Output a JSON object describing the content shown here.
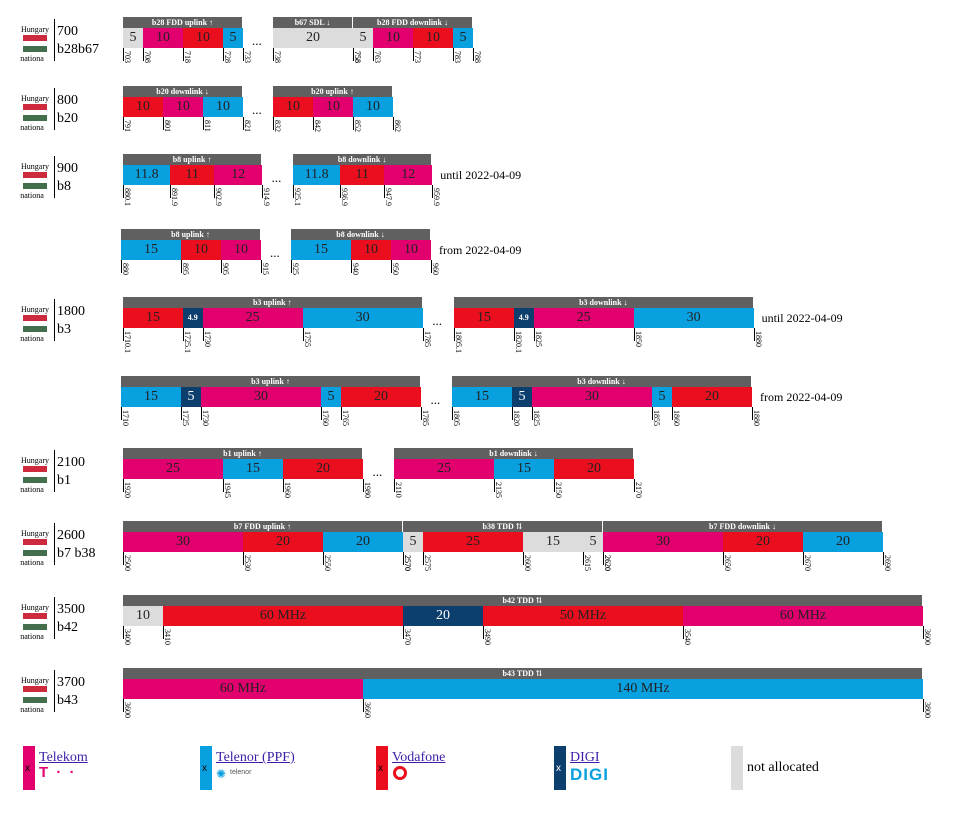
{
  "colors": {
    "telekom": "#e2006e",
    "telenor": "#09a0e0",
    "vodafone": "#ea0e1e",
    "digi": "#0c3e6e",
    "na": "#dcdcdc",
    "header": "#606060"
  },
  "country": {
    "top": "Hungary",
    "bottom": "nationa"
  },
  "rows": [
    {
      "band": "700",
      "codes": "b28b67",
      "note": "",
      "groups": [
        {
          "header": "b28 FDD uplink ↑",
          "segments": [
            {
              "op": "na",
              "label": "5",
              "mhz": 5
            },
            {
              "op": "telekom",
              "label": "10",
              "mhz": 10
            },
            {
              "op": "vodafone",
              "label": "10",
              "mhz": 10
            },
            {
              "op": "telenor",
              "label": "5",
              "mhz": 5
            }
          ],
          "ticks": [
            "703",
            "708",
            "718",
            "728",
            "733"
          ]
        },
        {
          "header": "b67 SDL ↓",
          "segments": [
            {
              "op": "na",
              "label": "20",
              "mhz": 20
            }
          ],
          "ticks": [
            "738",
            "758"
          ]
        },
        {
          "header": "b28 FDD downlink ↓",
          "segments": [
            {
              "op": "na",
              "label": "5",
              "mhz": 5
            },
            {
              "op": "telekom",
              "label": "10",
              "mhz": 10
            },
            {
              "op": "vodafone",
              "label": "10",
              "mhz": 10
            },
            {
              "op": "telenor",
              "label": "5",
              "mhz": 5
            }
          ],
          "ticks": [
            "758",
            "763",
            "773",
            "783",
            "788"
          ]
        }
      ]
    },
    {
      "band": "800",
      "codes": "b20",
      "note": "",
      "groups": [
        {
          "header": "b20 downlink ↓",
          "segments": [
            {
              "op": "vodafone",
              "label": "10",
              "mhz": 10
            },
            {
              "op": "telekom",
              "label": "10",
              "mhz": 10
            },
            {
              "op": "telenor",
              "label": "10",
              "mhz": 10
            }
          ],
          "ticks": [
            "791",
            "801",
            "811",
            "821"
          ]
        },
        {
          "header": "b20 uplink ↑",
          "segments": [
            {
              "op": "vodafone",
              "label": "10",
              "mhz": 10
            },
            {
              "op": "telekom",
              "label": "10",
              "mhz": 10
            },
            {
              "op": "telenor",
              "label": "10",
              "mhz": 10
            }
          ],
          "ticks": [
            "832",
            "842",
            "852",
            "862"
          ]
        }
      ]
    },
    {
      "band": "900",
      "codes": "b8",
      "note": "until 2022-04-09",
      "groups": [
        {
          "header": "b8 uplink ↑",
          "segments": [
            {
              "op": "telenor",
              "label": "11.8",
              "mhz": 11.8
            },
            {
              "op": "vodafone",
              "label": "11",
              "mhz": 11
            },
            {
              "op": "telekom",
              "label": "12",
              "mhz": 12
            }
          ],
          "ticks": [
            "880.1",
            "891.9",
            "902.9",
            "914.9"
          ]
        },
        {
          "header": "b8 downlink ↓",
          "segments": [
            {
              "op": "telenor",
              "label": "11.8",
              "mhz": 11.8
            },
            {
              "op": "vodafone",
              "label": "11",
              "mhz": 11
            },
            {
              "op": "telekom",
              "label": "12",
              "mhz": 12
            }
          ],
          "ticks": [
            "925.1",
            "936.9",
            "947.9",
            "959.9"
          ]
        }
      ]
    },
    {
      "band": "",
      "codes": "",
      "note": "from 2022-04-09",
      "groups": [
        {
          "header": "b8 uplink ↑",
          "segments": [
            {
              "op": "telenor",
              "label": "15",
              "mhz": 15
            },
            {
              "op": "vodafone",
              "label": "10",
              "mhz": 10
            },
            {
              "op": "telekom",
              "label": "10",
              "mhz": 10
            }
          ],
          "ticks": [
            "880",
            "895",
            "905",
            "915"
          ]
        },
        {
          "header": "b8 downlink ↓",
          "segments": [
            {
              "op": "telenor",
              "label": "15",
              "mhz": 15
            },
            {
              "op": "vodafone",
              "label": "10",
              "mhz": 10
            },
            {
              "op": "telekom",
              "label": "10",
              "mhz": 10
            }
          ],
          "ticks": [
            "925",
            "940",
            "950",
            "960"
          ]
        }
      ]
    },
    {
      "band": "1800",
      "codes": "b3",
      "note": "until 2022-04-09",
      "groups": [
        {
          "header": "b3 uplink ↑",
          "segments": [
            {
              "op": "vodafone",
              "label": "15",
              "mhz": 15
            },
            {
              "op": "digi",
              "label": "4.9",
              "mhz": 4.9,
              "small": true
            },
            {
              "op": "telekom",
              "label": "25",
              "mhz": 25
            },
            {
              "op": "telenor",
              "label": "30",
              "mhz": 30
            }
          ],
          "ticks": [
            "1710.1",
            "1725.1",
            "1730",
            "1755",
            "1785"
          ]
        },
        {
          "header": "b3 downlink ↓",
          "segments": [
            {
              "op": "vodafone",
              "label": "15",
              "mhz": 15
            },
            {
              "op": "digi",
              "label": "4.9",
              "mhz": 4.9,
              "small": true
            },
            {
              "op": "telekom",
              "label": "25",
              "mhz": 25
            },
            {
              "op": "telenor",
              "label": "30",
              "mhz": 30
            }
          ],
          "ticks": [
            "1805.1",
            "1820.1",
            "1825",
            "1850",
            "1880"
          ]
        }
      ]
    },
    {
      "band": "",
      "codes": "",
      "note": "from 2022-04-09",
      "groups": [
        {
          "header": "b3 uplink ↑",
          "segments": [
            {
              "op": "telenor",
              "label": "15",
              "mhz": 15
            },
            {
              "op": "digi",
              "label": "5",
              "mhz": 5
            },
            {
              "op": "telekom",
              "label": "30",
              "mhz": 30
            },
            {
              "op": "telenor",
              "label": "5",
              "mhz": 5
            },
            {
              "op": "vodafone",
              "label": "20",
              "mhz": 20
            }
          ],
          "ticks": [
            "1710",
            "1725",
            "1730",
            "1760",
            "1765",
            "1785"
          ]
        },
        {
          "header": "b3 downlink ↓",
          "segments": [
            {
              "op": "telenor",
              "label": "15",
              "mhz": 15
            },
            {
              "op": "digi",
              "label": "5",
              "mhz": 5
            },
            {
              "op": "telekom",
              "label": "30",
              "mhz": 30
            },
            {
              "op": "telenor",
              "label": "5",
              "mhz": 5
            },
            {
              "op": "vodafone",
              "label": "20",
              "mhz": 20
            }
          ],
          "ticks": [
            "1805",
            "1820",
            "1825",
            "1855",
            "1860",
            "1880"
          ]
        }
      ]
    },
    {
      "band": "2100",
      "codes": "b1",
      "note": "",
      "groups": [
        {
          "header": "b1 uplink ↑",
          "segments": [
            {
              "op": "telekom",
              "label": "25",
              "mhz": 25
            },
            {
              "op": "telenor",
              "label": "15",
              "mhz": 15
            },
            {
              "op": "vodafone",
              "label": "20",
              "mhz": 20
            }
          ],
          "ticks": [
            "1920",
            "1945",
            "1960",
            "1980"
          ]
        },
        {
          "header": "b1 downlink ↓",
          "segments": [
            {
              "op": "telekom",
              "label": "25",
              "mhz": 25
            },
            {
              "op": "telenor",
              "label": "15",
              "mhz": 15
            },
            {
              "op": "vodafone",
              "label": "20",
              "mhz": 20
            }
          ],
          "ticks": [
            "2110",
            "2135",
            "2150",
            "2170"
          ]
        }
      ]
    },
    {
      "band": "2600",
      "codes": "b7 b38",
      "note": "",
      "groups": [
        {
          "header": "b7 FDD uplink ↑",
          "segments": [
            {
              "op": "telekom",
              "label": "30",
              "mhz": 30
            },
            {
              "op": "vodafone",
              "label": "20",
              "mhz": 20
            },
            {
              "op": "telenor",
              "label": "20",
              "mhz": 20
            }
          ],
          "ticks": [
            "2500",
            "2530",
            "2550",
            "2570"
          ]
        },
        {
          "header": "b38 TDD ⇅",
          "segments": [
            {
              "op": "na",
              "label": "5",
              "mhz": 5
            },
            {
              "op": "vodafone",
              "label": "25",
              "mhz": 25
            },
            {
              "op": "na",
              "label": "15",
              "mhz": 15
            },
            {
              "op": "na",
              "label": "5",
              "mhz": 5
            }
          ],
          "ticks": [
            "2570",
            "2575",
            "2600",
            "2615",
            "2620"
          ]
        },
        {
          "header": "b7 FDD downlink ↓",
          "segments": [
            {
              "op": "telekom",
              "label": "30",
              "mhz": 30
            },
            {
              "op": "vodafone",
              "label": "20",
              "mhz": 20
            },
            {
              "op": "telenor",
              "label": "20",
              "mhz": 20
            }
          ],
          "ticks": [
            "2620",
            "2650",
            "2670",
            "2690"
          ]
        }
      ]
    },
    {
      "band": "3500",
      "codes": "b42",
      "note": "",
      "groups": [
        {
          "header": "b42 TDD ⇅",
          "segments": [
            {
              "op": "na",
              "label": "10",
              "mhz": 10
            },
            {
              "op": "vodafone",
              "label": "60 MHz",
              "mhz": 60
            },
            {
              "op": "digi",
              "label": "20",
              "mhz": 20
            },
            {
              "op": "vodafone",
              "label": "50 MHz",
              "mhz": 50
            },
            {
              "op": "telekom",
              "label": "60 MHz",
              "mhz": 60
            }
          ],
          "ticks": [
            "3400",
            "3410",
            "3470",
            "3490",
            "3540",
            "3600"
          ]
        }
      ]
    },
    {
      "band": "3700",
      "codes": "b43",
      "note": "",
      "groups": [
        {
          "header": "b43 TDD ⇅",
          "segments": [
            {
              "op": "telekom",
              "label": "60 MHz",
              "mhz": 60
            },
            {
              "op": "telenor",
              "label": "140 MHz",
              "mhz": 140
            }
          ],
          "ticks": [
            "3600",
            "3660",
            "3800"
          ]
        }
      ]
    }
  ],
  "legend": [
    {
      "op": "telekom",
      "name": "Telekom",
      "link": true,
      "mark": "x",
      "logo": "T · ·"
    },
    {
      "op": "telenor",
      "name": "Telenor (PPF)",
      "link": true,
      "mark": "x",
      "logo": "telenor"
    },
    {
      "op": "vodafone",
      "name": "Vodafone",
      "link": true,
      "mark": "x",
      "logo": ""
    },
    {
      "op": "digi",
      "name": "DIGI",
      "link": true,
      "mark": "x",
      "logo": "DIGI"
    },
    {
      "op": "na",
      "name": "not allocated",
      "link": false,
      "mark": "",
      "logo": ""
    }
  ],
  "ellipsis": "..."
}
